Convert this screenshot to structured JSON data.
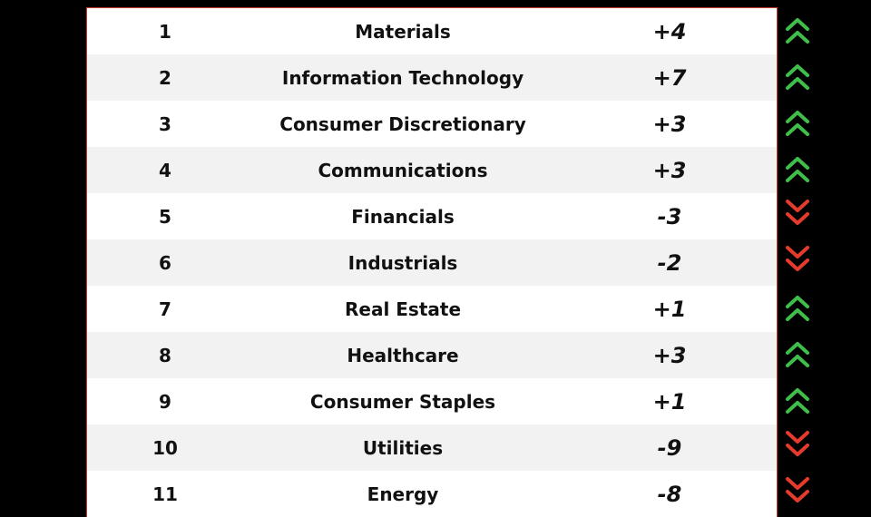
{
  "table": {
    "rows": [
      [
        "1",
        "Materials",
        "+4"
      ],
      [
        "2",
        "Information Technology",
        "+7"
      ],
      [
        "3",
        "Consumer Discretionary",
        "+3"
      ],
      [
        "4",
        "Communications",
        "+3"
      ],
      [
        "5",
        "Financials",
        "-3"
      ],
      [
        "6",
        "Industrials",
        "-2"
      ],
      [
        "7",
        "Real Estate",
        "+1"
      ],
      [
        "8",
        "Healthcare",
        "+3"
      ],
      [
        "9",
        "Consumer Staples",
        "+1"
      ],
      [
        "10",
        "Utilities",
        "-9"
      ],
      [
        "11",
        "Energy",
        "-8"
      ]
    ]
  }
}
